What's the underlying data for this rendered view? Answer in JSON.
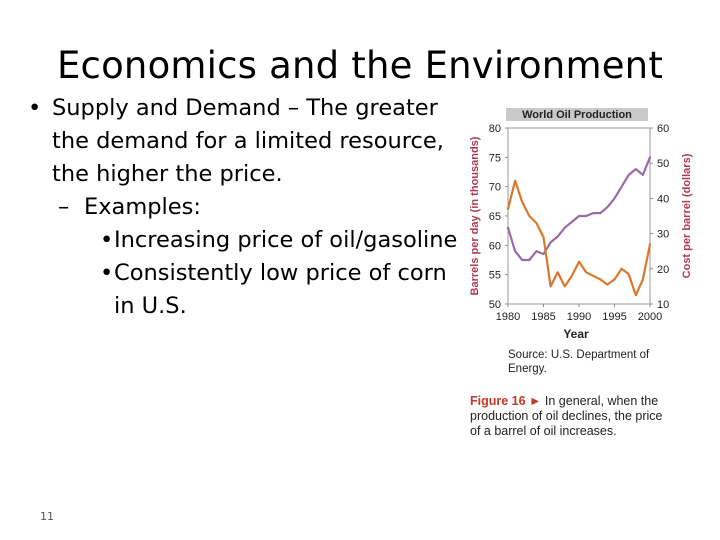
{
  "slide": {
    "title": "Economics and the Environment",
    "number": "11",
    "bullet_main": "Supply and Demand – The greater the demand for a limited resource, the higher the price.",
    "dash": "–",
    "sub_label": "Examples:",
    "examples": [
      "Increasing price of oil/gasoline",
      "Consistently low price of corn in U.S."
    ]
  },
  "figure": {
    "source": "Source: U.S. Department of Energy.",
    "caption_label": "Figure 16 ►",
    "caption_text": "In general, when the production of oil declines, the price of a barrel of oil increases."
  },
  "chart_data": {
    "type": "line",
    "title": "World Oil Production",
    "xlabel": "Year",
    "ylabel": "Barrels per day (in thousands)",
    "ylabel_right": "Cost per barrel (dollars)",
    "xlim": [
      1980,
      2000
    ],
    "ylim": [
      50,
      80
    ],
    "ylim_right": [
      10,
      60
    ],
    "x_ticks": [
      "1980",
      "1985",
      "1990",
      "1995",
      "2000"
    ],
    "y_ticks": [
      "80",
      "75",
      "70",
      "65",
      "60",
      "55",
      "50"
    ],
    "y_ticks_right": [
      "60",
      "50",
      "40",
      "30",
      "20",
      "10"
    ],
    "grid": false,
    "colors": {
      "production": "#9b6aa8",
      "cost": "#d9782d",
      "title_bg": "#c9c9c9"
    },
    "series": [
      {
        "name": "Barrels per day (in thousands)",
        "axis": "left",
        "x": [
          1980,
          1981,
          1982,
          1983,
          1984,
          1985,
          1986,
          1987,
          1988,
          1989,
          1990,
          1991,
          1992,
          1993,
          1994,
          1995,
          1996,
          1997,
          1998,
          1999,
          2000
        ],
        "values": [
          63,
          59,
          57.5,
          57.5,
          59,
          58.5,
          60.5,
          61.5,
          63,
          64,
          65,
          65,
          65.5,
          65.5,
          66.5,
          68,
          70,
          72,
          73,
          72,
          75
        ]
      },
      {
        "name": "Cost per barrel (dollars)",
        "axis": "right",
        "x": [
          1980,
          1981,
          1982,
          1983,
          1984,
          1985,
          1986,
          1987,
          1988,
          1989,
          1990,
          1991,
          1992,
          1993,
          1994,
          1995,
          1996,
          1997,
          1998,
          1999,
          2000
        ],
        "values": [
          37,
          45,
          39,
          35,
          33,
          29,
          15,
          19,
          15,
          18,
          22,
          19,
          18,
          17,
          15.5,
          17,
          20,
          18.5,
          12.5,
          17,
          27
        ]
      }
    ]
  }
}
